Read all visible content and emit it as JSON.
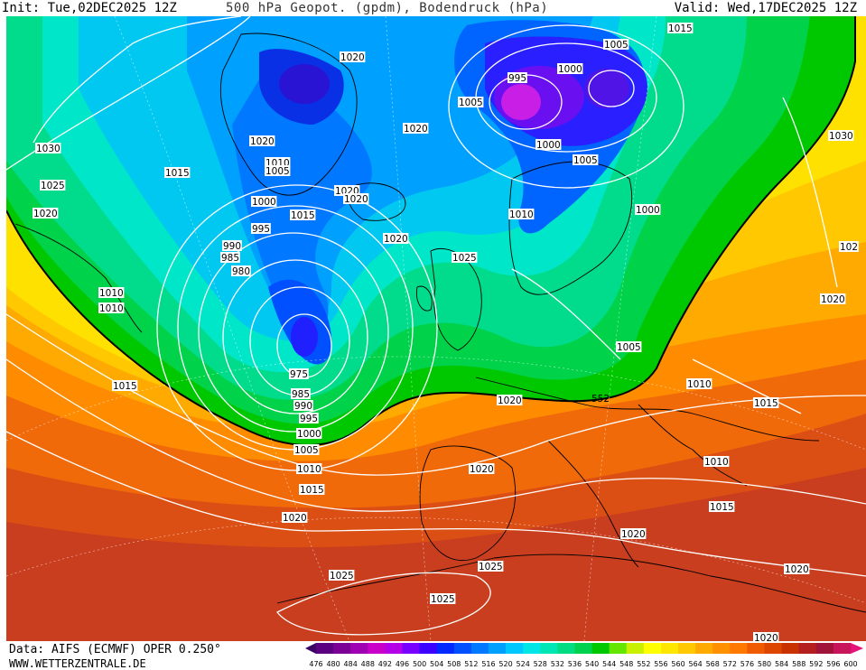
{
  "header": {
    "init": "Init: Tue,02DEC2025 12Z",
    "title": "500 hPa Geopot. (gpdm), Bodendruck (hPa)",
    "valid": "Valid: Wed,17DEC2025 12Z"
  },
  "footer": {
    "data_source": "Data: AIFS (ECMWF) OPER 0.250°",
    "website": "WWW.WETTERZENTRALE.DE"
  },
  "colorbar": {
    "labels": [
      "476",
      "480",
      "484",
      "488",
      "492",
      "496",
      "500",
      "504",
      "508",
      "512",
      "516",
      "520",
      "524",
      "528",
      "532",
      "536",
      "540",
      "544",
      "548",
      "552",
      "556",
      "560",
      "564",
      "568",
      "572",
      "576",
      "580",
      "584",
      "588",
      "592",
      "596",
      "600"
    ],
    "colors": [
      "#3b0064",
      "#5a0080",
      "#7a0096",
      "#a000b4",
      "#c800c8",
      "#b400e6",
      "#7800ff",
      "#3c00ff",
      "#0028ff",
      "#0050ff",
      "#0078ff",
      "#00a0ff",
      "#00c8ff",
      "#00e6e6",
      "#00e6b4",
      "#00dc82",
      "#00d250",
      "#00c800",
      "#64e600",
      "#c8f000",
      "#ffff00",
      "#ffe600",
      "#ffc800",
      "#ffaa00",
      "#ff9100",
      "#ff7800",
      "#f05a00",
      "#dc4600",
      "#c83200",
      "#b41e1e",
      "#a0143c",
      "#c8145a",
      "#e6147a"
    ]
  },
  "map": {
    "contour_552_label": "552",
    "isobar_labels": [
      {
        "id": "iso-1015-top",
        "text": "1015"
      },
      {
        "id": "iso-1005-top",
        "text": "1005"
      },
      {
        "id": "iso-1000-top",
        "text": "1000"
      },
      {
        "id": "iso-995-top",
        "text": "995"
      },
      {
        "id": "iso-1005-norw",
        "text": "1005"
      },
      {
        "id": "iso-1020-green",
        "text": "1020"
      },
      {
        "id": "iso-1020-ice",
        "text": "1020"
      },
      {
        "id": "iso-1020-gr",
        "text": "1020"
      },
      {
        "id": "iso-1030-w",
        "text": "1030"
      },
      {
        "id": "iso-1015-w",
        "text": "1015"
      },
      {
        "id": "iso-1025-w",
        "text": "1025"
      },
      {
        "id": "iso-1020-w",
        "text": "1020"
      },
      {
        "id": "iso-1010-a",
        "text": "1010"
      },
      {
        "id": "iso-1005-a",
        "text": "1005"
      },
      {
        "id": "iso-1020-b",
        "text": "1020"
      },
      {
        "id": "iso-1020-c",
        "text": "1020"
      },
      {
        "id": "iso-1000-a",
        "text": "1000"
      },
      {
        "id": "iso-1015-a",
        "text": "1015"
      },
      {
        "id": "iso-995-a",
        "text": "995"
      },
      {
        "id": "iso-990-a",
        "text": "990"
      },
      {
        "id": "iso-985-a",
        "text": "985"
      },
      {
        "id": "iso-980-a",
        "text": "980"
      },
      {
        "id": "iso-1020-uk",
        "text": "1020"
      },
      {
        "id": "iso-1025-uk",
        "text": "1025"
      },
      {
        "id": "iso-1010-scan",
        "text": "1010"
      },
      {
        "id": "iso-1000-sc",
        "text": "1000"
      },
      {
        "id": "iso-1005-sc",
        "text": "1005"
      },
      {
        "id": "iso-1000-e",
        "text": "1000"
      },
      {
        "id": "iso-1030-e",
        "text": "1030"
      },
      {
        "id": "iso-102-e",
        "text": "102"
      },
      {
        "id": "iso-1020-e",
        "text": "1020"
      },
      {
        "id": "iso-1010-sw1",
        "text": "1010"
      },
      {
        "id": "iso-1010-sw2",
        "text": "1010"
      },
      {
        "id": "iso-1015-sw",
        "text": "1015"
      },
      {
        "id": "iso-975",
        "text": "975"
      },
      {
        "id": "iso-985-b",
        "text": "985"
      },
      {
        "id": "iso-990-b",
        "text": "990"
      },
      {
        "id": "iso-995-b",
        "text": "995"
      },
      {
        "id": "iso-1000-b",
        "text": "1000"
      },
      {
        "id": "iso-1005-b",
        "text": "1005"
      },
      {
        "id": "iso-1010-b",
        "text": "1010"
      },
      {
        "id": "iso-1015-b",
        "text": "1015"
      },
      {
        "id": "iso-1020-d",
        "text": "1020"
      },
      {
        "id": "iso-1020-fr",
        "text": "1020"
      },
      {
        "id": "iso-1020-sp",
        "text": "1020"
      },
      {
        "id": "iso-1005-med",
        "text": "1005"
      },
      {
        "id": "iso-1010-ad",
        "text": "1010"
      },
      {
        "id": "iso-1010-gr",
        "text": "1010"
      },
      {
        "id": "iso-1015-tr",
        "text": "1015"
      },
      {
        "id": "iso-1015-med",
        "text": "1015"
      },
      {
        "id": "iso-1020-af",
        "text": "1020"
      },
      {
        "id": "iso-1025-af1",
        "text": "1025"
      },
      {
        "id": "iso-1025-af2",
        "text": "1025"
      },
      {
        "id": "iso-1025-af3",
        "text": "1025"
      },
      {
        "id": "iso-1020-se",
        "text": "1020"
      },
      {
        "id": "iso-1020-bot",
        "text": "1020"
      }
    ]
  }
}
